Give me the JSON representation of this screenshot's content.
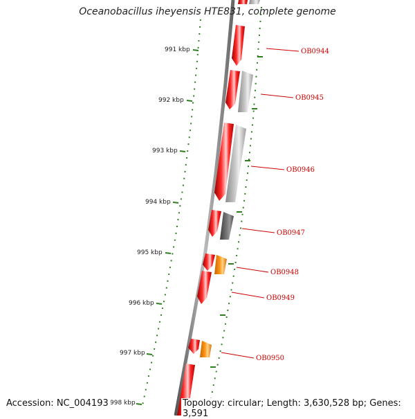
{
  "title": "Oceanobacillus iheyensis HTE831, complete genome",
  "footer": {
    "accession": "Accession: NC_004193",
    "summary": "Topology: circular; Length: 3,630,528 bp; Genes: 3,591"
  },
  "ticks": [
    {
      "label": "991 kbp"
    },
    {
      "label": "992 kbp"
    },
    {
      "label": "993 kbp"
    },
    {
      "label": "994 kbp"
    },
    {
      "label": "995 kbp"
    },
    {
      "label": "996 kbp"
    },
    {
      "label": "997 kbp"
    },
    {
      "label": "998 kbp"
    }
  ],
  "gene_labels": [
    "OB0944",
    "OB0945",
    "OB0946",
    "OB0947",
    "OB0948",
    "OB0949",
    "OB0950"
  ],
  "colors": {
    "forward_gene": "#e8000b",
    "reverse_gene_grey": "#bdbdbd",
    "reverse_gene_dark": "#6b6b6b",
    "reverse_gene_orange": "#ff8c00",
    "tick": "#2e7d1e",
    "label_line": "#cc0000",
    "label_text": "#cc0000",
    "backbone": "#777777"
  }
}
